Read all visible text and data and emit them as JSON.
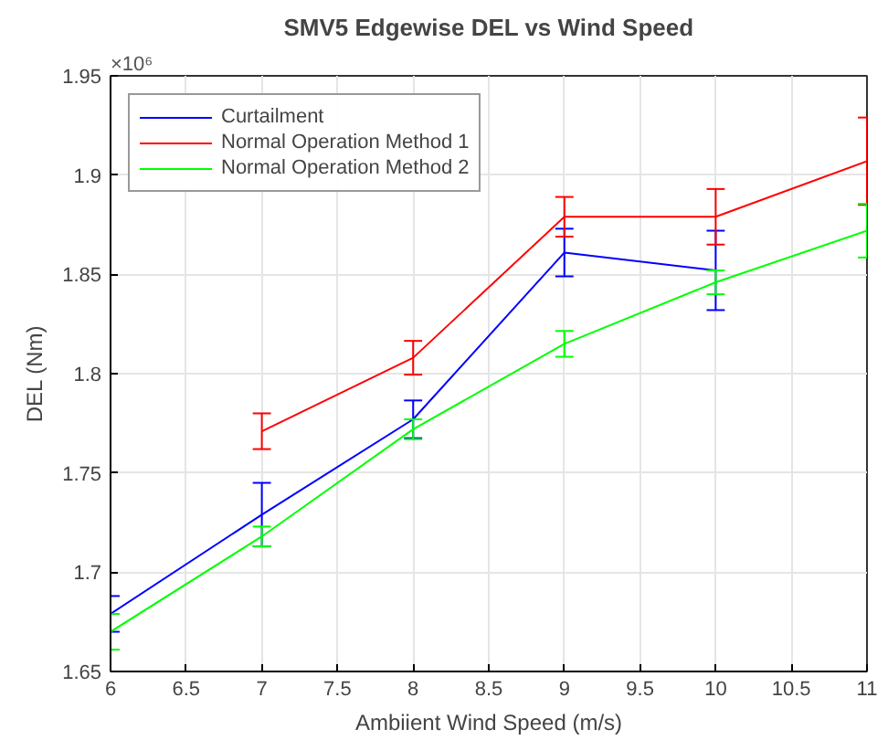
{
  "chart_data": {
    "type": "line",
    "title": "SMV5 Edgewise DEL vs Wind Speed",
    "xlabel": "Ambiient Wind Speed (m/s)",
    "ylabel": "DEL (Nm)",
    "annotations": [
      "×10⁶"
    ],
    "x": [
      6,
      7,
      8,
      9,
      10,
      11
    ],
    "series": [
      {
        "name": "Curtailment",
        "color": "#0000ff",
        "values": [
          1.679,
          1.729,
          1.777,
          1.861,
          1.852,
          null
        ],
        "errors": [
          0.009,
          0.016,
          0.0095,
          0.012,
          0.02,
          null
        ]
      },
      {
        "name": "Normal Operation Method 1",
        "color": "#ff0000",
        "values": [
          null,
          1.771,
          1.808,
          1.879,
          1.879,
          1.907
        ],
        "errors": [
          null,
          0.009,
          0.0085,
          0.01,
          0.014,
          0.022
        ]
      },
      {
        "name": "Normal Operation Method 2",
        "color": "#00ff00",
        "values": [
          1.67,
          1.718,
          1.772,
          1.815,
          1.846,
          1.872
        ],
        "errors": [
          0.009,
          0.005,
          0.005,
          0.0065,
          0.006,
          0.0135
        ]
      }
    ],
    "xlim": [
      6,
      11
    ],
    "ylim": [
      1.65,
      1.95
    ],
    "xticks": [
      6,
      6.5,
      7,
      7.5,
      8,
      8.5,
      9,
      9.5,
      10,
      10.5,
      11
    ],
    "yticks": [
      1.65,
      1.7,
      1.75,
      1.8,
      1.85,
      1.9,
      1.95
    ],
    "grid": true,
    "legend": "top left",
    "marker": "none",
    "line_style": "solid"
  }
}
